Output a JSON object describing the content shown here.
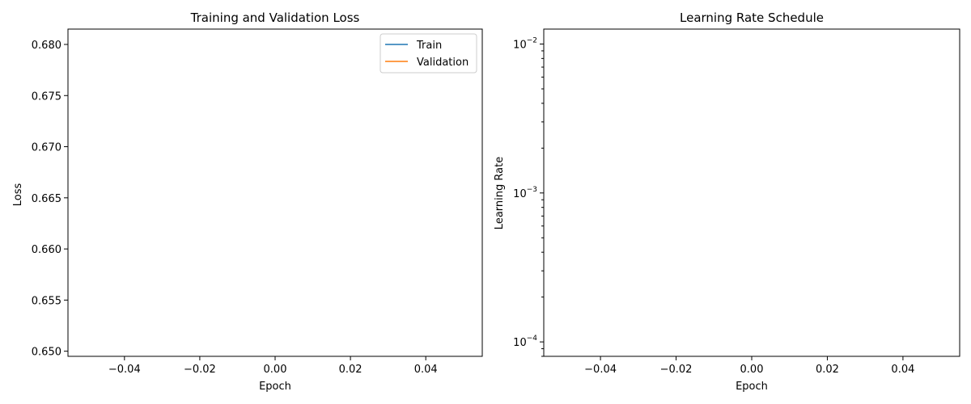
{
  "chart_data": [
    {
      "type": "line",
      "title": "Training and Validation Loss",
      "xlabel": "Epoch",
      "ylabel": "Loss",
      "xlim": [
        -0.055,
        0.055
      ],
      "ylim": [
        0.6495,
        0.6815
      ],
      "x_ticks": [
        -0.04,
        -0.02,
        0.0,
        0.02,
        0.04
      ],
      "x_tick_labels": [
        "−0.04",
        "−0.02",
        "0.00",
        "0.02",
        "0.04"
      ],
      "y_ticks": [
        0.65,
        0.655,
        0.66,
        0.665,
        0.67,
        0.675,
        0.68
      ],
      "y_tick_labels": [
        "0.650",
        "0.655",
        "0.660",
        "0.665",
        "0.670",
        "0.675",
        "0.680"
      ],
      "grid": false,
      "legend_position": "top-right",
      "series": [
        {
          "name": "Train",
          "color": "#1f77b4",
          "x": [],
          "y": []
        },
        {
          "name": "Validation",
          "color": "#ff7f0e",
          "x": [],
          "y": []
        }
      ]
    },
    {
      "type": "line",
      "title": "Learning Rate Schedule",
      "xlabel": "Epoch",
      "ylabel": "Learning Rate",
      "yscale": "log",
      "xlim": [
        -0.055,
        0.055
      ],
      "ylim": [
        8e-05,
        0.0126
      ],
      "x_ticks": [
        -0.04,
        -0.02,
        0.0,
        0.02,
        0.04
      ],
      "x_tick_labels": [
        "−0.04",
        "−0.02",
        "0.00",
        "0.02",
        "0.04"
      ],
      "y_ticks": [
        0.0001,
        0.001,
        0.01
      ],
      "y_tick_labels": [
        {
          "base": "10",
          "exp": "−4"
        },
        {
          "base": "10",
          "exp": "−3"
        },
        {
          "base": "10",
          "exp": "−2"
        }
      ],
      "grid": false,
      "series": [
        {
          "color": "#1f77b4",
          "x": [],
          "y": []
        }
      ]
    }
  ]
}
